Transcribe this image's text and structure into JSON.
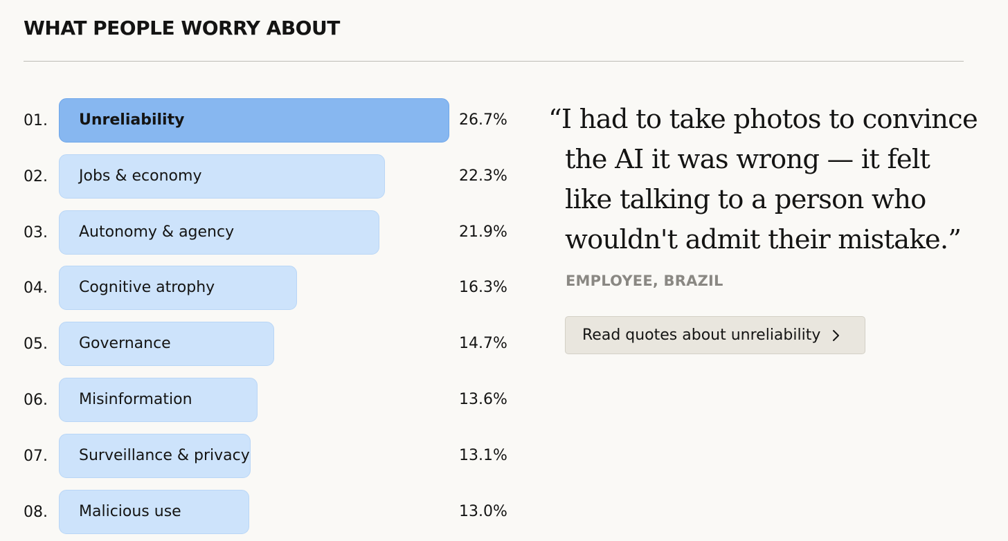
{
  "heading": "WHAT PEOPLE WORRY ABOUT",
  "chart_data": {
    "type": "bar",
    "orientation": "horizontal",
    "ranks": [
      "01.",
      "02.",
      "03.",
      "04.",
      "05.",
      "06.",
      "07.",
      "08."
    ],
    "categories": [
      "Unreliability",
      "Jobs & economy",
      "Autonomy & agency",
      "Cognitive atrophy",
      "Governance",
      "Misinformation",
      "Surveillance & privacy",
      "Malicious use"
    ],
    "values": [
      26.7,
      22.3,
      21.9,
      16.3,
      14.7,
      13.6,
      13.1,
      13.0
    ],
    "value_labels": [
      "26.7%",
      "22.3%",
      "21.9%",
      "16.3%",
      "14.7%",
      "13.6%",
      "13.1%",
      "13.0%"
    ],
    "highlighted_index": 0,
    "bar_color": "#cde3fb",
    "highlight_color": "#87b7f0"
  },
  "quote": {
    "lines": [
      "“I had to take photos to convince",
      "the AI it was wrong — it felt",
      "like talking to a person who",
      "wouldn't admit their mistake.”"
    ],
    "attribution": "EMPLOYEE, BRAZIL",
    "button_label": "Read quotes about unreliability",
    "button_icon": "chevron-right-icon"
  }
}
